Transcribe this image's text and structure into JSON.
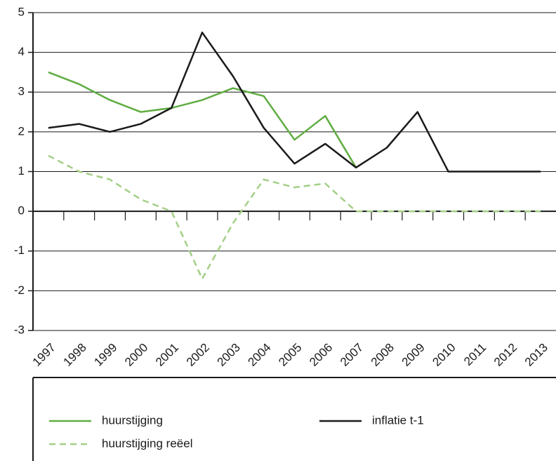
{
  "chart_data": {
    "type": "line",
    "categories": [
      "1997",
      "1998",
      "1999",
      "2000",
      "2001",
      "2002",
      "2003",
      "2004",
      "2005",
      "2006",
      "2007",
      "2008",
      "2009",
      "2010",
      "2011",
      "2012",
      "2013"
    ],
    "series": [
      {
        "name": "huurstijging",
        "color": "#5fad41",
        "dash": false,
        "values": [
          3.5,
          3.2,
          2.8,
          2.5,
          2.6,
          2.8,
          3.1,
          2.9,
          1.8,
          2.4,
          1.1,
          null,
          null,
          null,
          null,
          null,
          null
        ]
      },
      {
        "name": "inflatie t-1",
        "color": "#1a1a1a",
        "dash": false,
        "values": [
          2.1,
          2.2,
          2.0,
          2.2,
          2.6,
          4.5,
          3.4,
          2.1,
          1.2,
          1.7,
          1.1,
          1.6,
          2.5,
          1.0,
          1.0,
          1.0,
          1.0
        ]
      },
      {
        "name": "huurstijging reëel",
        "color": "#a3cf86",
        "dash": true,
        "values": [
          1.4,
          1.0,
          0.8,
          0.3,
          0.0,
          -1.7,
          -0.3,
          0.8,
          0.6,
          0.7,
          0.0,
          0.0,
          0.0,
          0.0,
          0.0,
          0.0,
          0.0
        ]
      }
    ],
    "ylim": [
      -3,
      5
    ],
    "yticks": [
      -3,
      -2,
      -1,
      0,
      1,
      2,
      3,
      4,
      5
    ],
    "grid": true
  }
}
